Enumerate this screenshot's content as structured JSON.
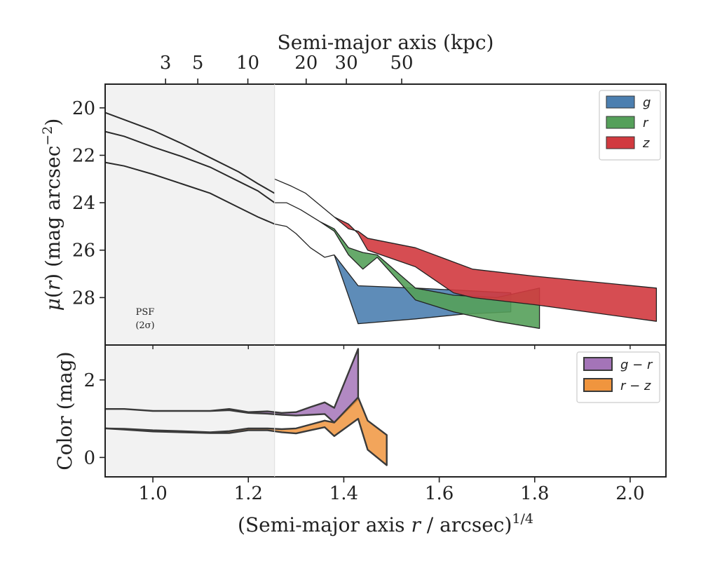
{
  "chart_data": {
    "type": "area",
    "top_axis": {
      "label": "Semi-major axis (kpc)",
      "ticks": [
        3,
        5,
        10,
        20,
        30,
        50
      ],
      "tick_positions_x": [
        1.0266,
        1.0941,
        1.199,
        1.3212,
        1.4054,
        1.5213
      ]
    },
    "upper_panel": {
      "ylabel": "μ(r) (mag arcsec⁻²)",
      "ylim": [
        19,
        30
      ],
      "inverted": true,
      "yticks": [
        20,
        22,
        24,
        26,
        28
      ],
      "psf_label": [
        "PSF",
        "(2σ)"
      ],
      "psf_region_x": [
        0.9,
        1.255
      ],
      "legend": {
        "placement": "top-right",
        "entries": [
          "g",
          "r",
          "z"
        ]
      },
      "profiles": [
        {
          "x": [
            0.9,
            0.94,
            1.0,
            1.06,
            1.12,
            1.18,
            1.22,
            1.255
          ],
          "y": [
            20.2,
            20.5,
            20.95,
            21.5,
            22.1,
            22.7,
            23.2,
            23.6
          ]
        },
        {
          "x": [
            0.9,
            0.94,
            1.0,
            1.06,
            1.12,
            1.18,
            1.22,
            1.255
          ],
          "y": [
            21.0,
            21.2,
            21.65,
            22.05,
            22.5,
            23.1,
            23.5,
            24.0
          ]
        },
        {
          "x": [
            0.9,
            0.94,
            1.0,
            1.06,
            1.12,
            1.18,
            1.22,
            1.255
          ],
          "y": [
            22.3,
            22.45,
            22.8,
            23.2,
            23.6,
            24.2,
            24.6,
            24.9
          ]
        }
      ],
      "series": [
        {
          "name": "g",
          "color": "#4c7fb0",
          "x": [
            1.255,
            1.28,
            1.3,
            1.33,
            1.36,
            1.38,
            1.43,
            1.55,
            1.65,
            1.75
          ],
          "y_upper": [
            24.9,
            25.0,
            25.3,
            25.9,
            26.3,
            26.2,
            27.5,
            27.6,
            27.7,
            27.8
          ],
          "y_lower": [
            24.9,
            25.0,
            25.3,
            25.9,
            26.3,
            26.2,
            29.1,
            28.9,
            28.7,
            28.6
          ]
        },
        {
          "name": "r",
          "color": "#55a05a",
          "x": [
            1.255,
            1.28,
            1.31,
            1.35,
            1.38,
            1.41,
            1.44,
            1.47,
            1.55,
            1.63,
            1.72,
            1.81
          ],
          "y_upper": [
            24.0,
            24.0,
            24.3,
            24.8,
            25.1,
            25.9,
            26.1,
            26.2,
            27.6,
            27.9,
            28.0,
            27.6
          ],
          "y_lower": [
            24.0,
            24.0,
            24.3,
            24.8,
            25.2,
            26.2,
            26.8,
            26.3,
            28.1,
            28.6,
            29.0,
            29.3
          ]
        },
        {
          "name": "z",
          "color": "#d13a3f",
          "x": [
            1.255,
            1.29,
            1.32,
            1.35,
            1.38,
            1.41,
            1.43,
            1.45,
            1.55,
            1.63,
            1.67,
            1.8,
            2.055
          ],
          "y_upper": [
            23.0,
            23.3,
            23.6,
            24.1,
            24.6,
            25.1,
            25.2,
            25.5,
            25.9,
            26.5,
            26.8,
            27.1,
            27.6
          ],
          "y_lower": [
            23.0,
            23.3,
            23.6,
            24.1,
            24.6,
            24.9,
            25.3,
            26.0,
            26.7,
            27.8,
            28.0,
            28.3,
            29.0
          ]
        }
      ]
    },
    "lower_panel": {
      "ylabel": "Color (mag)",
      "ylim": [
        -0.5,
        2.9
      ],
      "yticks": [
        0,
        2
      ],
      "legend": {
        "placement": "top-right",
        "entries": [
          "g − r",
          "r − z"
        ]
      },
      "series": [
        {
          "name": "g − r",
          "color": "#a474b8",
          "x": [
            0.9,
            0.94,
            1.0,
            1.06,
            1.12,
            1.16,
            1.2,
            1.24,
            1.27,
            1.3,
            1.33,
            1.36,
            1.38,
            1.43
          ],
          "y_upper": [
            1.25,
            1.25,
            1.2,
            1.2,
            1.2,
            1.25,
            1.17,
            1.19,
            1.15,
            1.17,
            1.3,
            1.42,
            1.28,
            2.8
          ],
          "y_lower": [
            1.25,
            1.25,
            1.2,
            1.2,
            1.2,
            1.22,
            1.15,
            1.13,
            1.1,
            1.08,
            1.1,
            1.12,
            0.9,
            1.5
          ]
        },
        {
          "name": "r − z",
          "color": "#f0953e",
          "x": [
            0.9,
            0.94,
            1.0,
            1.06,
            1.12,
            1.16,
            1.2,
            1.24,
            1.27,
            1.3,
            1.33,
            1.36,
            1.38,
            1.43,
            1.45,
            1.49
          ],
          "y_upper": [
            0.75,
            0.74,
            0.7,
            0.68,
            0.65,
            0.68,
            0.75,
            0.75,
            0.73,
            0.75,
            0.85,
            0.95,
            0.9,
            1.55,
            0.95,
            0.58
          ],
          "y_lower": [
            0.75,
            0.72,
            0.67,
            0.65,
            0.63,
            0.63,
            0.7,
            0.7,
            0.65,
            0.62,
            0.7,
            0.78,
            0.55,
            1.0,
            0.2,
            -0.2
          ]
        }
      ]
    },
    "xaxis": {
      "label": "(Semi-major axis r / arcsec)^1/4",
      "label_parts": [
        "(Semi-major axis ",
        "r",
        " / arcsec)",
        "1/4"
      ],
      "xlim": [
        0.9,
        2.075
      ],
      "ticks": [
        1.0,
        1.2,
        1.4,
        1.6,
        1.8,
        2.0
      ],
      "tick_labels": [
        "1.0",
        "1.2",
        "1.4",
        "1.6",
        "1.8",
        "2.0"
      ]
    }
  }
}
